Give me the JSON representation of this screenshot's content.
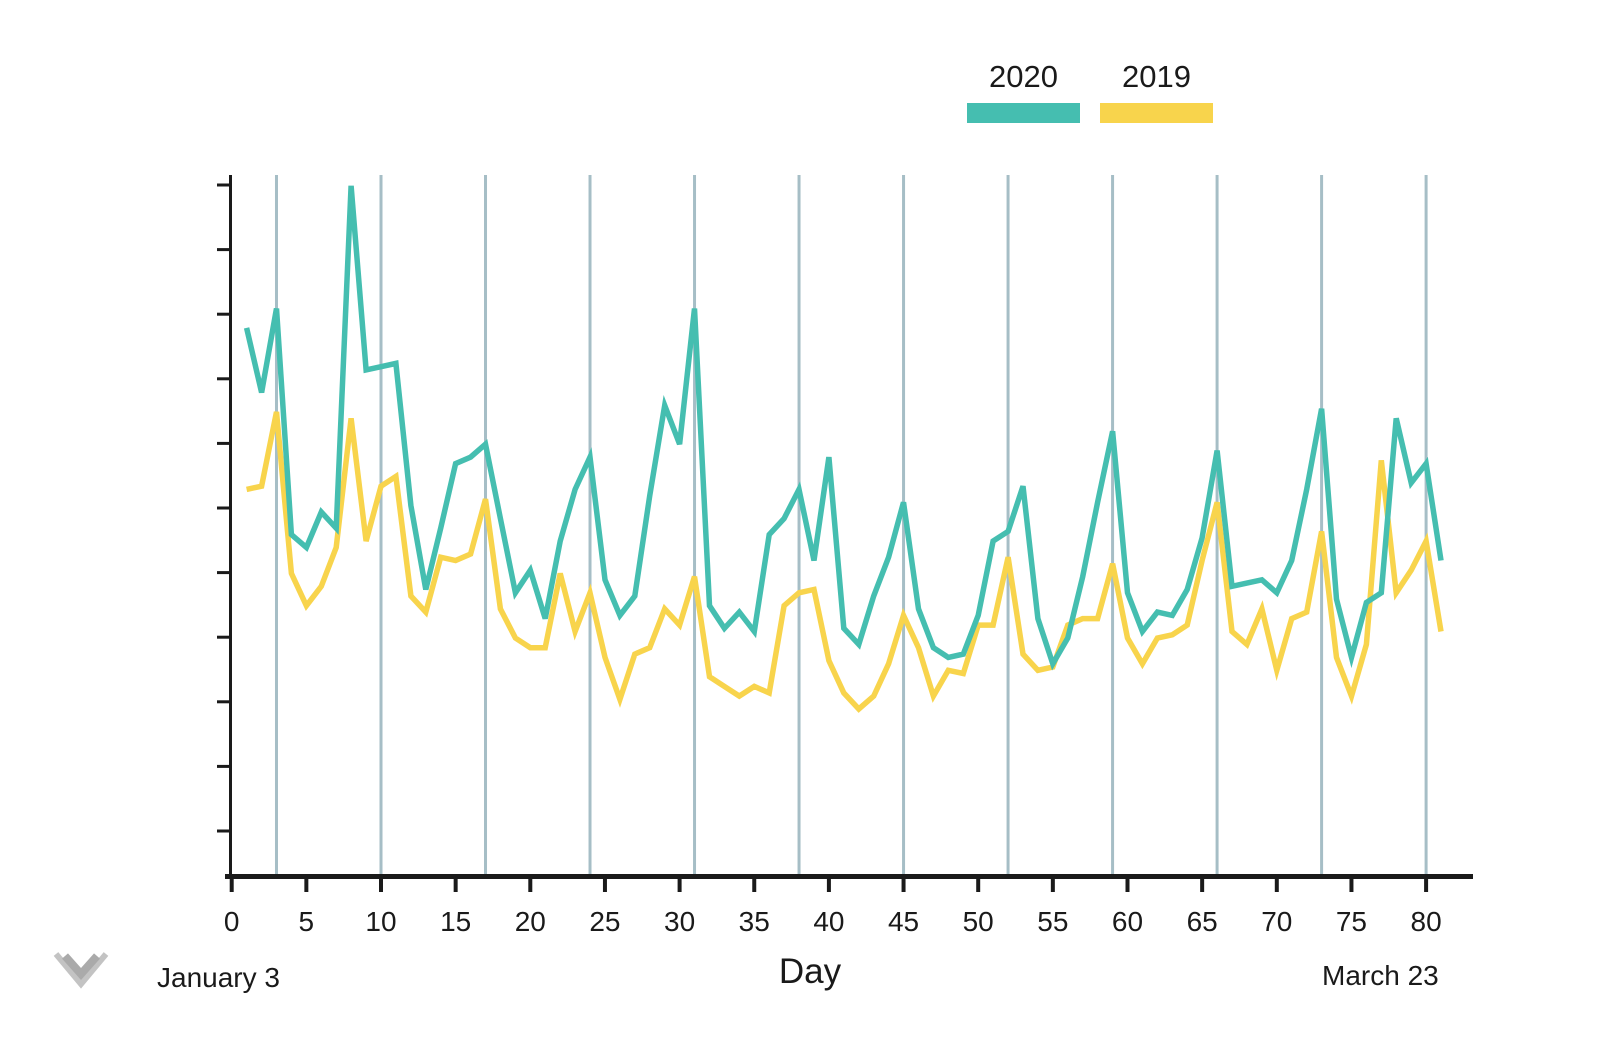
{
  "legend": {
    "items": [
      {
        "label": "2020",
        "color": "#45beb0"
      },
      {
        "label": "2019",
        "color": "#f8d44c"
      }
    ]
  },
  "annotations": {
    "start_date": "January 3",
    "end_date": "March 23"
  },
  "axis": {
    "x_label": "Day"
  },
  "colors": {
    "gridline": "#a6bec6",
    "axis_line": "#1a1a1a",
    "tick_label": "#1a1a1a",
    "logo_gray": "#b9b9b9"
  },
  "icons": {
    "logo": "double-chevron-down-icon"
  },
  "chart_data": {
    "type": "line",
    "title": "",
    "xlabel": "Day",
    "ylabel": "",
    "x_start_annotation": "January 3",
    "x_end_annotation": "March 23",
    "x_tick_labels": [
      0,
      5,
      10,
      15,
      20,
      25,
      30,
      35,
      40,
      45,
      50,
      55,
      60,
      65,
      70,
      75,
      80
    ],
    "gridline_days": [
      3,
      10,
      17,
      24,
      31,
      38,
      45,
      52,
      59,
      66,
      73,
      80
    ],
    "grid": "vertical-weekly-only",
    "x_range": [
      0,
      83
    ],
    "y_axis": {
      "numeric_labels_shown": false,
      "tick_count": 11,
      "units": "axis ticks above baseline"
    },
    "legend_position": "top-right",
    "x_start_day": 1,
    "x_step": 1,
    "series": [
      {
        "name": "2020",
        "color": "#45beb0",
        "values": [
          8.5,
          7.5,
          8.8,
          5.3,
          5.1,
          5.65,
          5.4,
          10.7,
          7.85,
          7.9,
          7.95,
          5.75,
          4.45,
          5.4,
          6.4,
          6.5,
          6.7,
          5.55,
          4.4,
          4.75,
          4.0,
          5.2,
          6.0,
          6.5,
          4.6,
          4.05,
          4.35,
          5.9,
          7.3,
          6.7,
          8.8,
          4.2,
          3.85,
          4.1,
          3.8,
          5.3,
          5.55,
          6.0,
          4.9,
          6.5,
          3.85,
          3.6,
          4.35,
          4.95,
          5.8,
          4.15,
          3.55,
          3.4,
          3.45,
          4.05,
          5.2,
          5.35,
          6.05,
          4.0,
          3.3,
          3.7,
          4.65,
          5.8,
          6.9,
          4.4,
          3.8,
          4.1,
          4.05,
          4.45,
          5.25,
          6.6,
          4.5,
          4.55,
          4.6,
          4.4,
          4.9,
          6.0,
          7.25,
          4.3,
          3.4,
          4.25,
          4.4,
          7.1,
          6.1,
          6.4,
          4.9
        ]
      },
      {
        "name": "2019",
        "color": "#f8d44c",
        "values": [
          6.0,
          6.05,
          7.2,
          4.7,
          4.2,
          4.5,
          5.1,
          7.1,
          5.2,
          6.05,
          6.2,
          4.35,
          4.1,
          4.95,
          4.9,
          5.0,
          5.85,
          4.15,
          3.7,
          3.55,
          3.55,
          4.7,
          3.8,
          4.4,
          3.4,
          2.75,
          3.45,
          3.55,
          4.15,
          3.9,
          4.65,
          3.1,
          2.95,
          2.8,
          2.95,
          2.85,
          4.2,
          4.4,
          4.45,
          3.35,
          2.85,
          2.6,
          2.8,
          3.3,
          4.05,
          3.55,
          2.8,
          3.2,
          3.15,
          3.9,
          3.9,
          4.95,
          3.45,
          3.2,
          3.25,
          3.9,
          4.0,
          4.0,
          4.85,
          3.7,
          3.3,
          3.7,
          3.75,
          3.9,
          4.9,
          5.8,
          3.8,
          3.6,
          4.15,
          3.2,
          4.0,
          4.1,
          5.35,
          3.4,
          2.8,
          3.6,
          6.45,
          4.4,
          4.75,
          5.2,
          3.8
        ]
      }
    ]
  }
}
